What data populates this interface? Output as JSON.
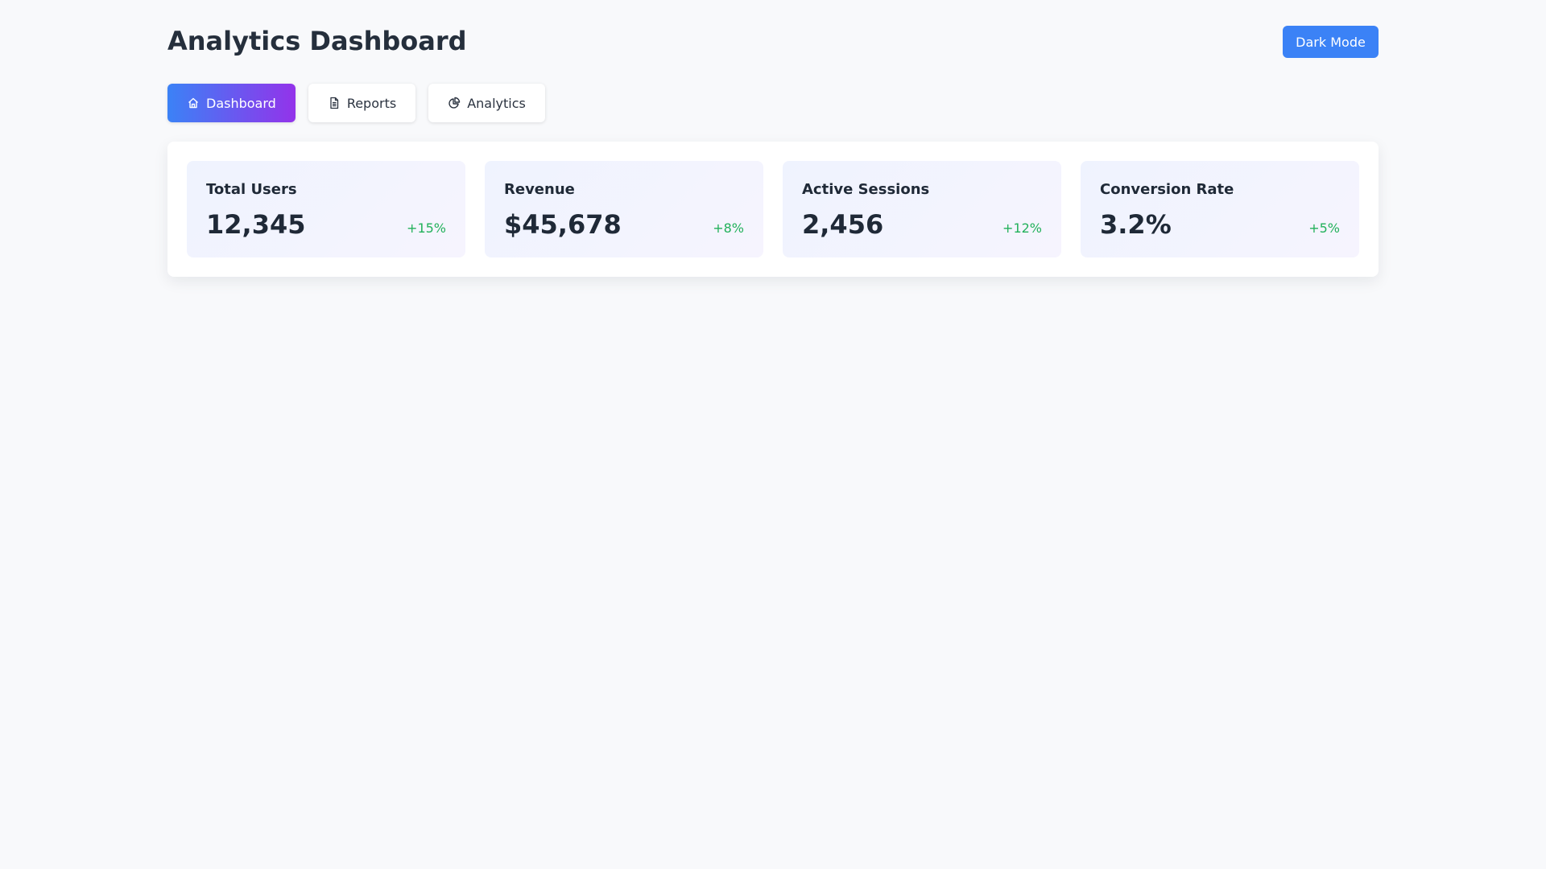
{
  "header": {
    "title": "Analytics Dashboard",
    "dark_mode_label": "Dark Mode"
  },
  "tabs": [
    {
      "label": "Dashboard",
      "icon": "home-icon",
      "active": true
    },
    {
      "label": "Reports",
      "icon": "document-icon",
      "active": false
    },
    {
      "label": "Analytics",
      "icon": "pie-chart-icon",
      "active": false
    }
  ],
  "stats": [
    {
      "label": "Total Users",
      "value": "12,345",
      "change": "+15%"
    },
    {
      "label": "Revenue",
      "value": "$45,678",
      "change": "+8%"
    },
    {
      "label": "Active Sessions",
      "value": "2,456",
      "change": "+12%"
    },
    {
      "label": "Conversion Rate",
      "value": "3.2%",
      "change": "+5%"
    }
  ],
  "colors": {
    "accent": "#3b82f6",
    "gradient_end": "#9333ea",
    "positive": "#22b15b",
    "background": "#f8f9fb"
  }
}
